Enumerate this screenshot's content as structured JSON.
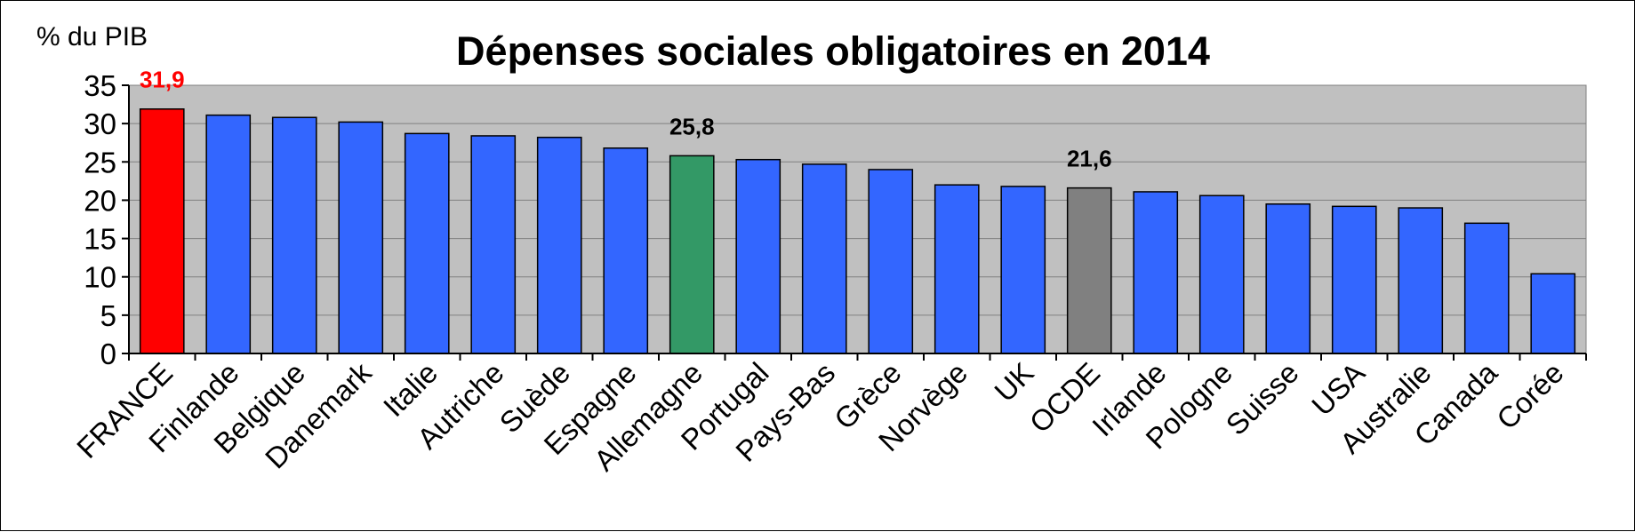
{
  "chart_data": {
    "type": "bar",
    "title": "Dépenses sociales obligatoires en 2014",
    "ylabel": "% du PIB",
    "xlabel": "",
    "ylim": [
      0,
      35
    ],
    "yticks": [
      "0",
      "5",
      "10",
      "15",
      "20",
      "25",
      "30",
      "35"
    ],
    "grid": true,
    "categories": [
      "FRANCE",
      "Finlande",
      "Belgique",
      "Danemark",
      "Italie",
      "Autriche",
      "Suède",
      "Espagne",
      "Allemagne",
      "Portugal",
      "Pays-Bas",
      "Grèce",
      "Norvège",
      "UK",
      "OCDE",
      "Irlande",
      "Pologne",
      "Suisse",
      "USA",
      "Australie",
      "Canada",
      "Corée"
    ],
    "values": [
      31.9,
      31.1,
      30.8,
      30.2,
      28.7,
      28.4,
      28.2,
      26.8,
      25.8,
      25.3,
      24.7,
      24.0,
      22.0,
      21.8,
      21.6,
      21.1,
      20.6,
      19.5,
      19.2,
      19.0,
      17.0,
      10.4
    ],
    "data_labels": [
      {
        "category": "FRANCE",
        "text": "31,9"
      },
      {
        "category": "Allemagne",
        "text": "25,8"
      },
      {
        "category": "OCDE",
        "text": "21,6"
      }
    ]
  },
  "colors": {
    "default_bar": "#3366ff",
    "highlight_bars": {
      "FRANCE": "#ff0000",
      "Allemagne": "#339966",
      "OCDE": "#808080"
    },
    "label_colors": {
      "FRANCE": "#ff0000",
      "Allemagne": "#000000",
      "OCDE": "#000000"
    },
    "plot_background": "#c0c0c0",
    "gridline": "#808080"
  }
}
